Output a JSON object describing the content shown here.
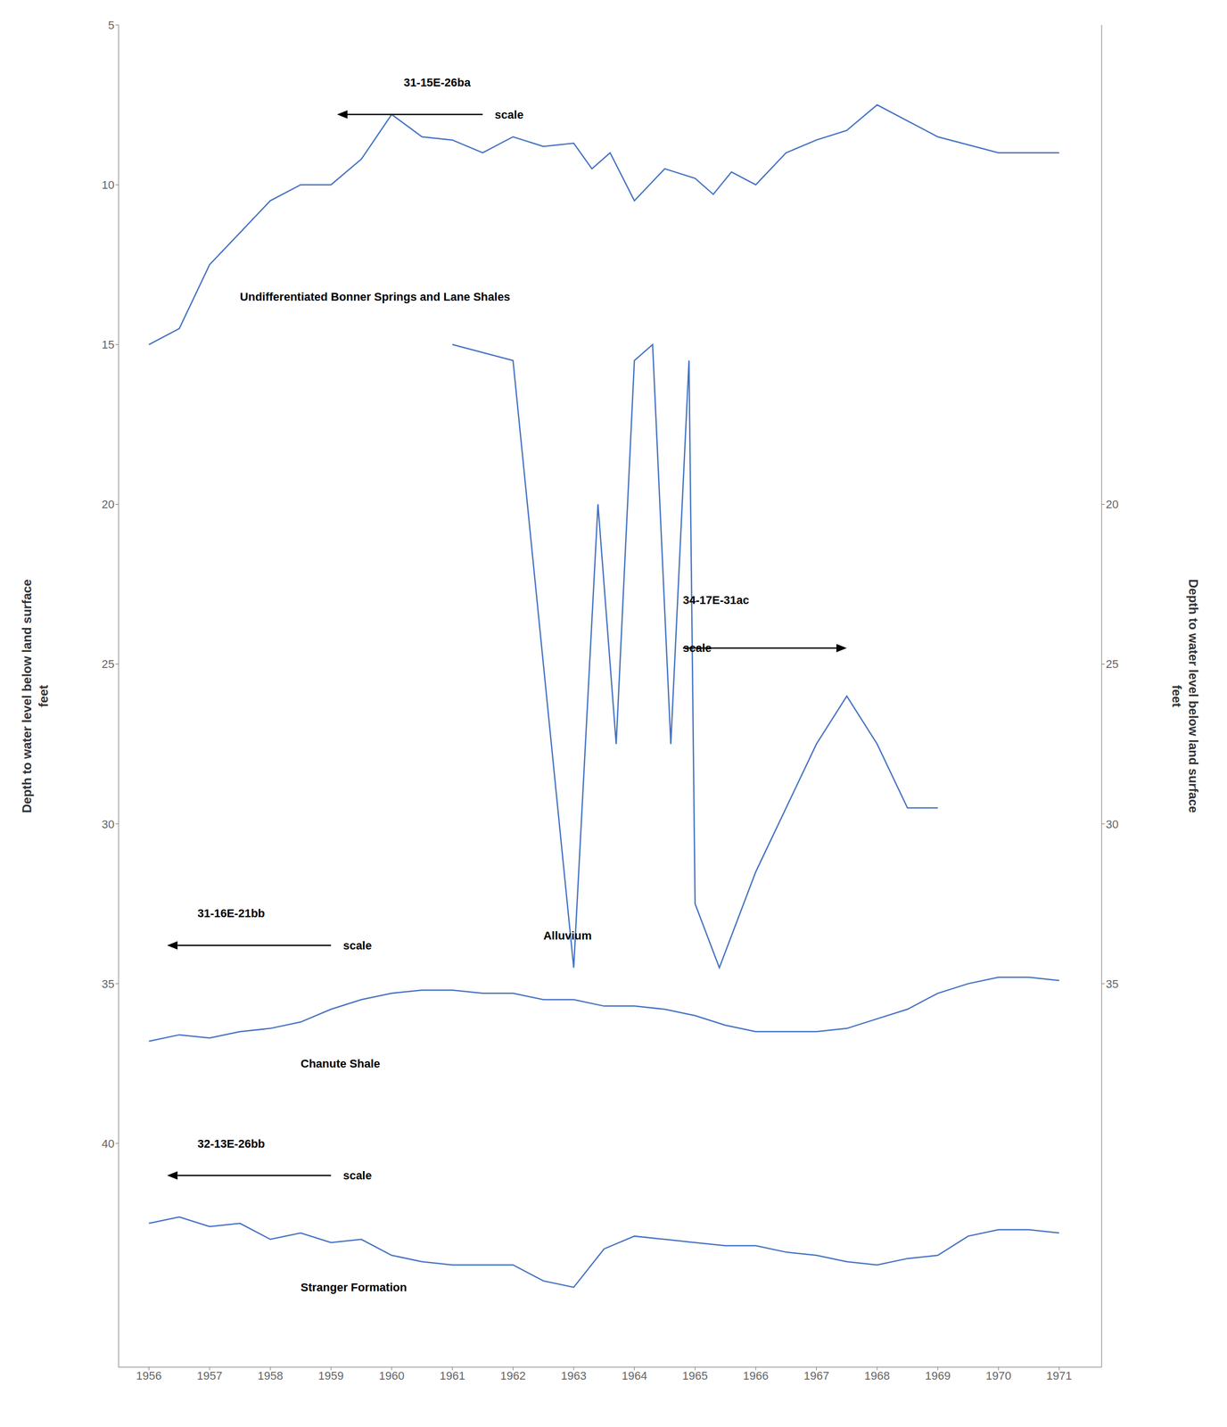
{
  "chart_data": {
    "type": "line",
    "xlim": [
      1955.5,
      1971.7
    ],
    "xticks": [
      1956,
      1957,
      1958,
      1959,
      1960,
      1961,
      1962,
      1963,
      1964,
      1965,
      1966,
      1967,
      1968,
      1969,
      1970,
      1971
    ],
    "ylim": [
      47,
      5
    ],
    "yticks": [
      5,
      10,
      15,
      20,
      25,
      30,
      35,
      40
    ],
    "y2lim": [
      47,
      5
    ],
    "y2ticks": [
      20,
      25,
      30,
      35
    ],
    "ylabel": "Depth to water level below land surface\nfeet",
    "y2label": "Depth to water level below land surface\nfeet",
    "grid": false,
    "series": [
      {
        "color": "#4472c4",
        "x": [
          1956,
          1956.5,
          1957,
          1957.5,
          1958,
          1958.5,
          1959,
          1959.5,
          1960,
          1960.5,
          1961,
          1961.5,
          1962,
          1962.5,
          1963,
          1963.3,
          1963.6,
          1964,
          1964.5,
          1965,
          1965.3,
          1965.6,
          1966,
          1966.5,
          1967,
          1967.5,
          1968,
          1968.5,
          1969,
          1970,
          1971
        ],
        "values": [
          15.0,
          14.5,
          12.5,
          11.5,
          10.5,
          10.0,
          10.0,
          9.2,
          7.8,
          8.5,
          8.6,
          9.0,
          8.5,
          8.8,
          8.7,
          9.5,
          9.0,
          10.5,
          9.5,
          9.8,
          10.3,
          9.6,
          10.0,
          9.0,
          8.6,
          8.3,
          7.5,
          8.0,
          8.5,
          9.0,
          9.0
        ]
      },
      {
        "color": "#4472c4",
        "x": [
          1961,
          1962,
          1963,
          1963.4,
          1963.7,
          1964,
          1964.3,
          1964.6,
          1964.9,
          1965,
          1965.4,
          1966,
          1967,
          1967.5,
          1968,
          1968.5,
          1969
        ],
        "values": [
          15.0,
          15.5,
          34.5,
          20.0,
          27.5,
          15.5,
          15.0,
          27.5,
          15.5,
          32.5,
          34.5,
          31.5,
          27.5,
          26.0,
          27.5,
          29.5,
          29.5
        ]
      },
      {
        "color": "#4472c4",
        "x": [
          1956,
          1956.5,
          1957,
          1957.5,
          1958,
          1958.5,
          1959,
          1959.5,
          1960,
          1960.5,
          1961,
          1961.5,
          1962,
          1962.5,
          1963,
          1963.5,
          1964,
          1964.5,
          1965,
          1965.5,
          1966,
          1966.5,
          1967,
          1967.5,
          1968,
          1968.5,
          1969,
          1969.5,
          1970,
          1970.5,
          1971
        ],
        "values": [
          36.8,
          36.6,
          36.7,
          36.5,
          36.4,
          36.2,
          35.8,
          35.5,
          35.3,
          35.2,
          35.2,
          35.3,
          35.3,
          35.5,
          35.5,
          35.7,
          35.7,
          35.8,
          36.0,
          36.3,
          36.5,
          36.5,
          36.5,
          36.4,
          36.1,
          35.8,
          35.3,
          35.0,
          34.8,
          34.8,
          34.9
        ]
      },
      {
        "color": "#4472c4",
        "x": [
          1956,
          1956.5,
          1957,
          1957.5,
          1958,
          1958.5,
          1959,
          1959.5,
          1960,
          1960.5,
          1961,
          1961.5,
          1962,
          1962.5,
          1963,
          1963.5,
          1964,
          1964.5,
          1965,
          1965.5,
          1966,
          1966.5,
          1967,
          1967.5,
          1968,
          1968.5,
          1969,
          1969.5,
          1970,
          1970.5,
          1971
        ],
        "values": [
          42.5,
          42.3,
          42.6,
          42.5,
          43.0,
          42.8,
          43.1,
          43.0,
          43.5,
          43.7,
          43.8,
          43.8,
          43.8,
          44.3,
          44.5,
          43.3,
          42.9,
          43.0,
          43.1,
          43.2,
          43.2,
          43.4,
          43.5,
          43.7,
          43.8,
          43.6,
          43.5,
          42.9,
          42.7,
          42.7,
          42.8
        ]
      }
    ],
    "annotations": [
      {
        "text": "31-15E-26ba",
        "x": 1960.2,
        "y": 6.8
      },
      {
        "text": "scale",
        "x": 1961.7,
        "y": 7.8,
        "arrow": {
          "from": [
            1961.5,
            7.8
          ],
          "to": [
            1959.1,
            7.8
          ]
        }
      },
      {
        "text": "Undifferentiated Bonner Springs and Lane Shales",
        "x": 1957.5,
        "y": 13.5
      },
      {
        "text": "34-17E-31ac",
        "x": 1964.8,
        "y": 23.0
      },
      {
        "text": "scale",
        "x": 1964.8,
        "y": 24.5,
        "arrow": {
          "from": [
            1964.8,
            24.5
          ],
          "to": [
            1967.5,
            24.5
          ]
        }
      },
      {
        "text": "Alluvium",
        "x": 1962.5,
        "y": 33.5
      },
      {
        "text": "31-16E-21bb",
        "x": 1956.8,
        "y": 32.8
      },
      {
        "text": "scale",
        "x": 1959.2,
        "y": 33.8,
        "arrow": {
          "from": [
            1959.0,
            33.8
          ],
          "to": [
            1956.3,
            33.8
          ]
        }
      },
      {
        "text": "Chanute Shale",
        "x": 1958.5,
        "y": 37.5
      },
      {
        "text": "32-13E-26bb",
        "x": 1956.8,
        "y": 40.0
      },
      {
        "text": "scale",
        "x": 1959.2,
        "y": 41.0,
        "arrow": {
          "from": [
            1959.0,
            41.0
          ],
          "to": [
            1956.3,
            41.0
          ]
        }
      },
      {
        "text": "Stranger Formation",
        "x": 1958.5,
        "y": 44.5
      }
    ]
  }
}
